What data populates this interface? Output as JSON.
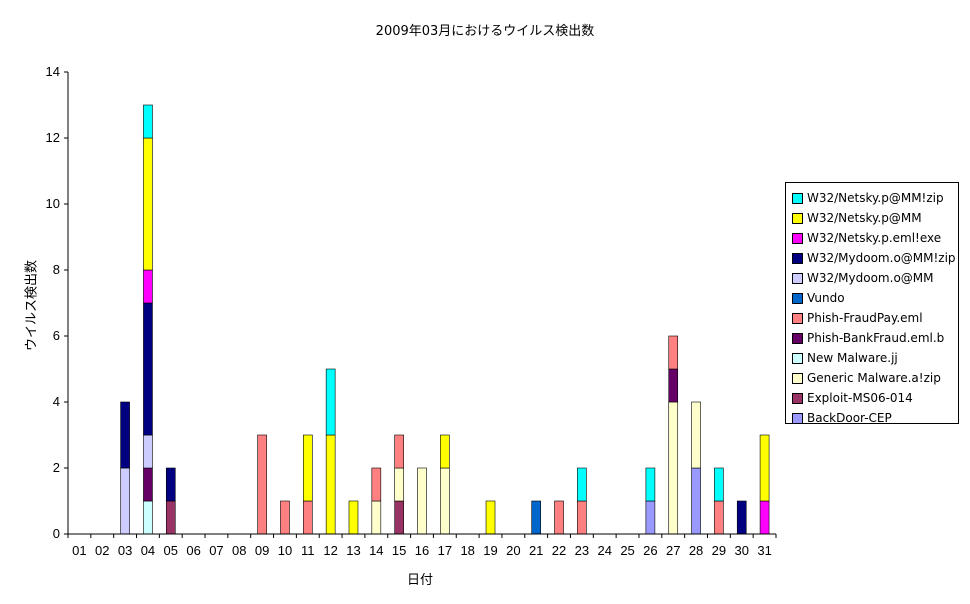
{
  "chart_data": {
    "type": "bar",
    "stacked": true,
    "title": "2009年03月におけるウイルス検出数",
    "xlabel": "日付",
    "ylabel": "ウイルス検出数",
    "ylim": [
      0,
      14
    ],
    "yticks": [
      0,
      2,
      4,
      6,
      8,
      10,
      12,
      14
    ],
    "grid": false,
    "legend_position": "right",
    "categories": [
      "01",
      "02",
      "03",
      "04",
      "05",
      "06",
      "07",
      "08",
      "09",
      "10",
      "11",
      "12",
      "13",
      "14",
      "15",
      "16",
      "17",
      "18",
      "19",
      "20",
      "21",
      "22",
      "23",
      "24",
      "25",
      "26",
      "27",
      "28",
      "29",
      "30",
      "31"
    ],
    "series": [
      {
        "name": "BackDoor-CEP",
        "color": "#9999FF",
        "values": [
          0,
          0,
          0,
          0,
          0,
          0,
          0,
          0,
          0,
          0,
          0,
          0,
          0,
          0,
          0,
          0,
          0,
          0,
          0,
          0,
          0,
          0,
          0,
          0,
          0,
          1,
          0,
          2,
          0,
          0,
          0
        ]
      },
      {
        "name": "Exploit-MS06-014",
        "color": "#993366",
        "values": [
          0,
          0,
          0,
          0,
          1,
          0,
          0,
          0,
          0,
          0,
          0,
          0,
          0,
          0,
          1,
          0,
          0,
          0,
          0,
          0,
          0,
          0,
          0,
          0,
          0,
          0,
          0,
          0,
          0,
          0,
          0
        ]
      },
      {
        "name": "Generic Malware.a!zip",
        "color": "#FFFFCC",
        "values": [
          0,
          0,
          0,
          0,
          0,
          0,
          0,
          0,
          0,
          0,
          0,
          0,
          0,
          1,
          1,
          2,
          2,
          0,
          0,
          0,
          0,
          0,
          0,
          0,
          0,
          0,
          4,
          2,
          0,
          0,
          0
        ]
      },
      {
        "name": "New Malware.jj",
        "color": "#CCFFFF",
        "values": [
          0,
          0,
          0,
          1,
          0,
          0,
          0,
          0,
          0,
          0,
          0,
          0,
          0,
          0,
          0,
          0,
          0,
          0,
          0,
          0,
          0,
          0,
          0,
          0,
          0,
          0,
          0,
          0,
          0,
          0,
          0
        ]
      },
      {
        "name": "Phish-BankFraud.eml.b",
        "color": "#660066",
        "values": [
          0,
          0,
          0,
          1,
          0,
          0,
          0,
          0,
          0,
          0,
          0,
          0,
          0,
          0,
          0,
          0,
          0,
          0,
          0,
          0,
          0,
          0,
          0,
          0,
          0,
          0,
          1,
          0,
          0,
          0,
          0
        ]
      },
      {
        "name": "Phish-FraudPay.eml",
        "color": "#FF8080",
        "values": [
          0,
          0,
          0,
          0,
          0,
          0,
          0,
          0,
          3,
          1,
          1,
          0,
          0,
          1,
          1,
          0,
          0,
          0,
          0,
          0,
          0,
          1,
          1,
          0,
          0,
          0,
          1,
          0,
          1,
          0,
          0
        ]
      },
      {
        "name": "Vundo",
        "color": "#0066CC",
        "values": [
          0,
          0,
          0,
          0,
          0,
          0,
          0,
          0,
          0,
          0,
          0,
          0,
          0,
          0,
          0,
          0,
          0,
          0,
          0,
          0,
          1,
          0,
          0,
          0,
          0,
          0,
          0,
          0,
          0,
          0,
          0
        ]
      },
      {
        "name": "W32/Mydoom.o@MM",
        "color": "#CCCCFF",
        "values": [
          0,
          0,
          2,
          1,
          0,
          0,
          0,
          0,
          0,
          0,
          0,
          0,
          0,
          0,
          0,
          0,
          0,
          0,
          0,
          0,
          0,
          0,
          0,
          0,
          0,
          0,
          0,
          0,
          0,
          0,
          0
        ]
      },
      {
        "name": "W32/Mydoom.o@MM!zip",
        "color": "#000080",
        "values": [
          0,
          0,
          2,
          4,
          1,
          0,
          0,
          0,
          0,
          0,
          0,
          0,
          0,
          0,
          0,
          0,
          0,
          0,
          0,
          0,
          0,
          0,
          0,
          0,
          0,
          0,
          0,
          0,
          0,
          1,
          0
        ]
      },
      {
        "name": "W32/Netsky.p.eml!exe",
        "color": "#FF00FF",
        "values": [
          0,
          0,
          0,
          1,
          0,
          0,
          0,
          0,
          0,
          0,
          0,
          0,
          0,
          0,
          0,
          0,
          0,
          0,
          0,
          0,
          0,
          0,
          0,
          0,
          0,
          0,
          0,
          0,
          0,
          0,
          1
        ]
      },
      {
        "name": "W32/Netsky.p@MM",
        "color": "#FFFF00",
        "values": [
          0,
          0,
          0,
          4,
          0,
          0,
          0,
          0,
          0,
          0,
          2,
          3,
          1,
          0,
          0,
          0,
          1,
          0,
          1,
          0,
          0,
          0,
          0,
          0,
          0,
          0,
          0,
          0,
          0,
          0,
          2
        ]
      },
      {
        "name": "W32/Netsky.p@MM!zip",
        "color": "#00FFFF",
        "values": [
          0,
          0,
          0,
          1,
          0,
          0,
          0,
          0,
          0,
          0,
          0,
          2,
          0,
          0,
          0,
          0,
          0,
          0,
          0,
          0,
          0,
          0,
          1,
          0,
          0,
          1,
          0,
          0,
          1,
          0,
          0
        ]
      }
    ]
  }
}
